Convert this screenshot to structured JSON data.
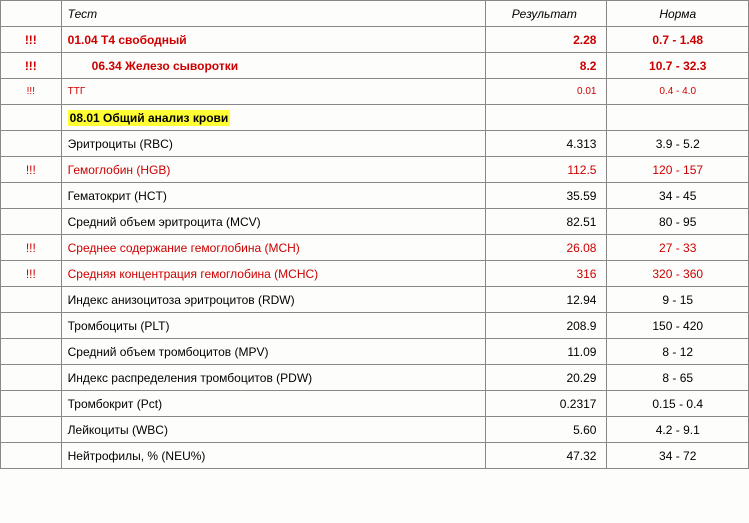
{
  "headers": {
    "test": "Тест",
    "result": "Результат",
    "norm": "Норма"
  },
  "section_title": "08.01 Общий анализ крови",
  "rows": [
    {
      "flag": "!!!",
      "test": "01.04 Т4 свободный",
      "result": "2.28",
      "norm": "0.7 - 1.48",
      "cls": "red bold",
      "flagcls": "red bold",
      "indent": false
    },
    {
      "flag": "!!!",
      "test": "06.34 Железо сыворотки",
      "result": "8.2",
      "norm": "10.7 - 32.3",
      "cls": "red bold",
      "flagcls": "red bold",
      "indent": true
    },
    {
      "flag": "!!!",
      "test": "ТТГ",
      "result": "0.01",
      "norm": "0.4 - 4.0",
      "cls": "red small",
      "flagcls": "red small",
      "indent": false
    }
  ],
  "cbc": [
    {
      "flag": "",
      "test": "Эритроциты (RBC)",
      "result": "4.313",
      "norm": "3.9 - 5.2",
      "cls": ""
    },
    {
      "flag": "!!!",
      "test": "Гемоглобин (HGB)",
      "result": "112.5",
      "norm": "120 - 157",
      "cls": "red"
    },
    {
      "flag": "",
      "test": "Гематокрит (HCT)",
      "result": "35.59",
      "norm": "34 - 45",
      "cls": ""
    },
    {
      "flag": "",
      "test": "Средний объем эритроцита (MCV)",
      "result": "82.51",
      "norm": "80 - 95",
      "cls": ""
    },
    {
      "flag": "!!!",
      "test": "Среднее содержание гемоглобина (MCH)",
      "result": "26.08",
      "norm": "27 - 33",
      "cls": "red"
    },
    {
      "flag": "!!!",
      "test": "Средняя концентрация гемоглобина (MCHC)",
      "result": "316",
      "norm": "320 - 360",
      "cls": "red"
    },
    {
      "flag": "",
      "test": "Индекс анизоцитоза эритроцитов (RDW)",
      "result": "12.94",
      "norm": "9 - 15",
      "cls": ""
    },
    {
      "flag": "",
      "test": "Тромбоциты (PLT)",
      "result": "208.9",
      "norm": "150 - 420",
      "cls": ""
    },
    {
      "flag": "",
      "test": "Средний объем тромбоцитов (MPV)",
      "result": "11.09",
      "norm": "8 - 12",
      "cls": ""
    },
    {
      "flag": "",
      "test": "Индекс распределения тромбоцитов (PDW)",
      "result": "20.29",
      "norm": "8 - 65",
      "cls": ""
    },
    {
      "flag": "",
      "test": "Тромбокрит (Pct)",
      "result": "0.2317",
      "norm": "0.15 - 0.4",
      "cls": ""
    },
    {
      "flag": "",
      "test": "Лейкоциты (WBC)",
      "result": "5.60",
      "norm": "4.2 - 9.1",
      "cls": ""
    },
    {
      "flag": "",
      "test": "Нейтрофилы, % (NEU%)",
      "result": "47.32",
      "norm": "34 - 72",
      "cls": ""
    }
  ],
  "colors": {
    "red": "#cc0000",
    "highlight": "#ffff33"
  }
}
